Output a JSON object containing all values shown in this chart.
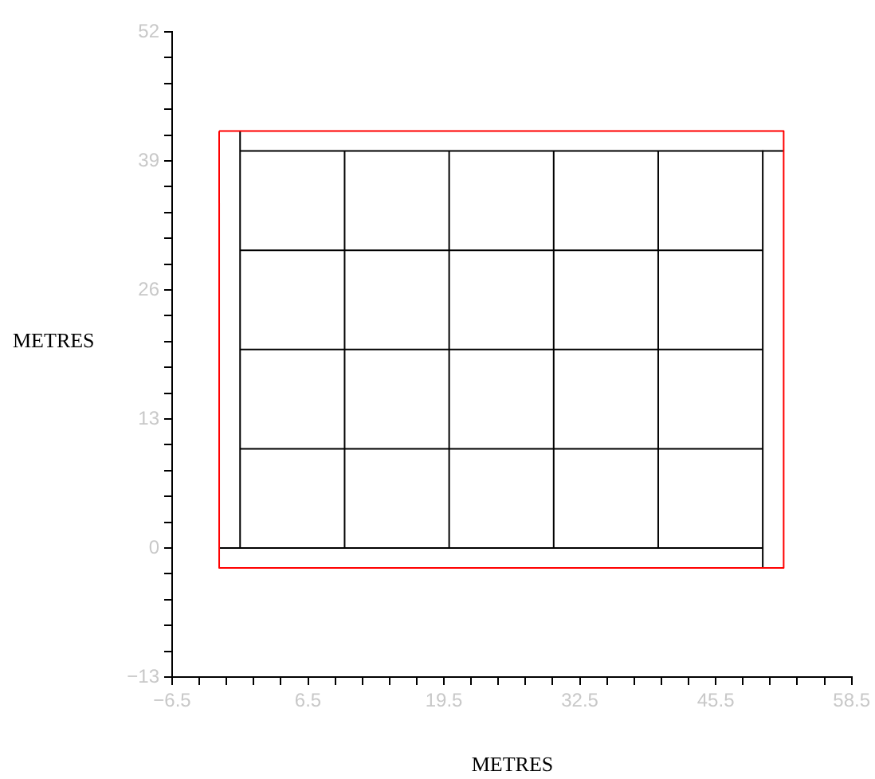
{
  "chart_data": {
    "type": "line",
    "xlabel": "METRES",
    "ylabel": "METRES",
    "xlim": [
      -6.5,
      58.5
    ],
    "ylim": [
      -13,
      52
    ],
    "xticks": [
      {
        "value": -6.5,
        "label": "−6.5"
      },
      {
        "value": -3.9,
        "label": null
      },
      {
        "value": -1.3,
        "label": null
      },
      {
        "value": 1.3,
        "label": null
      },
      {
        "value": 3.9,
        "label": null
      },
      6.5,
      {
        "value": 9.1,
        "label": null
      },
      {
        "value": 11.7,
        "label": null
      },
      {
        "value": 14.3,
        "label": null
      },
      {
        "value": 16.9,
        "label": null
      },
      19.5,
      {
        "value": 22.1,
        "label": null
      },
      {
        "value": 24.7,
        "label": null
      },
      {
        "value": 27.3,
        "label": null
      },
      {
        "value": 29.9,
        "label": null
      },
      32.5,
      {
        "value": 35.1,
        "label": null
      },
      {
        "value": 37.7,
        "label": null
      },
      {
        "value": 40.3,
        "label": null
      },
      {
        "value": 42.9,
        "label": null
      },
      45.5,
      {
        "value": 48.1,
        "label": null
      },
      {
        "value": 50.7,
        "label": null
      },
      {
        "value": 53.3,
        "label": null
      },
      {
        "value": 55.9,
        "label": null
      },
      58.5
    ],
    "yticks": [
      {
        "value": -13,
        "label": "−13"
      },
      {
        "value": -10.4,
        "label": null
      },
      {
        "value": -7.8,
        "label": null
      },
      {
        "value": -5.2,
        "label": null
      },
      {
        "value": -2.6,
        "label": null
      },
      0,
      {
        "value": 2.6,
        "label": null
      },
      {
        "value": 5.2,
        "label": null
      },
      {
        "value": 7.8,
        "label": null
      },
      {
        "value": 10.4,
        "label": null
      },
      13,
      {
        "value": 15.6,
        "label": null
      },
      {
        "value": 18.2,
        "label": null
      },
      {
        "value": 20.8,
        "label": null
      },
      {
        "value": 23.4,
        "label": null
      },
      26,
      {
        "value": 28.6,
        "label": null
      },
      {
        "value": 31.2,
        "label": null
      },
      {
        "value": 33.8,
        "label": null
      },
      {
        "value": 36.4,
        "label": null
      },
      39,
      {
        "value": 41.6,
        "label": null
      },
      {
        "value": 44.2,
        "label": null
      },
      {
        "value": 46.8,
        "label": null
      },
      {
        "value": 49.4,
        "label": null
      },
      52
    ],
    "grid": false,
    "legend": false,
    "marker": "none",
    "line_style": "solid",
    "series": [
      {
        "color": "#ff0000",
        "x": [
          -2,
          52,
          52
        ],
        "values": [
          42,
          42,
          -2
        ]
      },
      {
        "color": "#ff0000",
        "x": [
          52,
          -2,
          -2
        ],
        "values": [
          -2,
          -2,
          42
        ]
      },
      {
        "color": "#000000",
        "x": [
          0,
          52
        ],
        "values": [
          40,
          40
        ]
      },
      {
        "color": "#000000",
        "x": [
          50,
          50
        ],
        "values": [
          40,
          -2
        ]
      },
      {
        "color": "#000000",
        "x": [
          -2,
          50
        ],
        "values": [
          0,
          0
        ]
      },
      {
        "color": "#000000",
        "x": [
          0,
          0
        ],
        "values": [
          0,
          42
        ]
      },
      {
        "color": "#000000",
        "x": [
          10,
          10
        ],
        "values": [
          0,
          40
        ]
      },
      {
        "color": "#000000",
        "x": [
          20,
          20
        ],
        "values": [
          0,
          40
        ]
      },
      {
        "color": "#000000",
        "x": [
          30,
          30
        ],
        "values": [
          0,
          40
        ]
      },
      {
        "color": "#000000",
        "x": [
          40,
          40
        ],
        "values": [
          0,
          40
        ]
      },
      {
        "color": "#000000",
        "x": [
          0,
          50
        ],
        "values": [
          10,
          10
        ]
      },
      {
        "color": "#000000",
        "x": [
          0,
          50
        ],
        "values": [
          20,
          20
        ]
      },
      {
        "color": "#000000",
        "x": [
          0,
          50
        ],
        "values": [
          30,
          30
        ]
      }
    ]
  }
}
